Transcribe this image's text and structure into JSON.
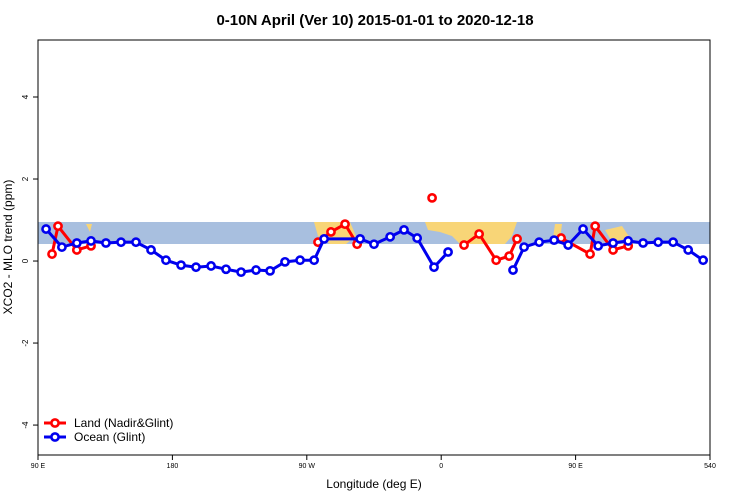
{
  "chart_data": {
    "type": "line",
    "title": "0-10N April (Ver 10)   2015-01-01 to 2020-12-18",
    "x_label": "Longitude (deg E)",
    "y_label": "XCO2 - MLO trend (ppm)",
    "xlim": [
      90,
      540
    ],
    "ylim": [
      -4.73,
      5.39
    ],
    "xticks": [
      {
        "value": 90,
        "label": "90 E"
      },
      180,
      {
        "value": 270,
        "label": "90 W"
      },
      {
        "value": 360,
        "label": "0"
      },
      {
        "value": 450,
        "label": "90 E"
      },
      540
    ],
    "yticks": [
      -4,
      -2,
      0,
      2,
      4
    ],
    "legend": "bottom-left",
    "series": [
      {
        "name": "Land (Nadir&Glint)",
        "color": "#ff0000",
        "x": [
          99.4,
          103.4,
          116,
          125.5,
          null,
          277.5,
          286.2,
          295.6,
          303.7,
          null,
          353.9,
          null,
          375.3,
          385.4,
          396.8,
          405.5,
          410.8,
          null,
          440.3,
          459.7,
          463.1,
          475.1,
          485.2
        ],
        "values": [
          0.17,
          0.85,
          0.27,
          0.37,
          null,
          0.46,
          0.71,
          0.9,
          0.41,
          null,
          1.54,
          null,
          0.39,
          0.66,
          0.02,
          0.12,
          0.54,
          null,
          0.56,
          0.17,
          0.85,
          0.27,
          0.37
        ]
      },
      {
        "name": "Ocean (Glint)",
        "color": "#0000ee",
        "x": [
          95.4,
          106,
          116,
          125.5,
          135.5,
          145.6,
          155.6,
          165.7,
          175.7,
          185.8,
          195.8,
          205.9,
          215.9,
          226,
          236,
          245.4,
          255.4,
          265.5,
          274.9,
          281.6,
          305.7,
          315,
          325.8,
          335.1,
          343.9,
          355.2,
          364.6,
          null,
          408.1,
          415.5,
          425.6,
          435.6,
          445,
          455,
          465.1,
          475.1,
          485.2,
          495.2,
          505.3,
          515.3,
          525.4,
          535.4
        ],
        "values": [
          0.78,
          0.34,
          0.44,
          0.49,
          0.44,
          0.46,
          0.46,
          0.27,
          0.02,
          -0.1,
          -0.15,
          -0.12,
          -0.2,
          -0.27,
          -0.22,
          -0.24,
          -0.02,
          0.02,
          0.02,
          0.54,
          0.54,
          0.41,
          0.59,
          0.76,
          0.56,
          -0.15,
          0.22,
          null,
          -0.22,
          0.34,
          0.46,
          0.51,
          0.39,
          0.78,
          0.37,
          0.44,
          0.49,
          0.44,
          0.46,
          0.46,
          0.27,
          0.02
        ]
      }
    ]
  }
}
